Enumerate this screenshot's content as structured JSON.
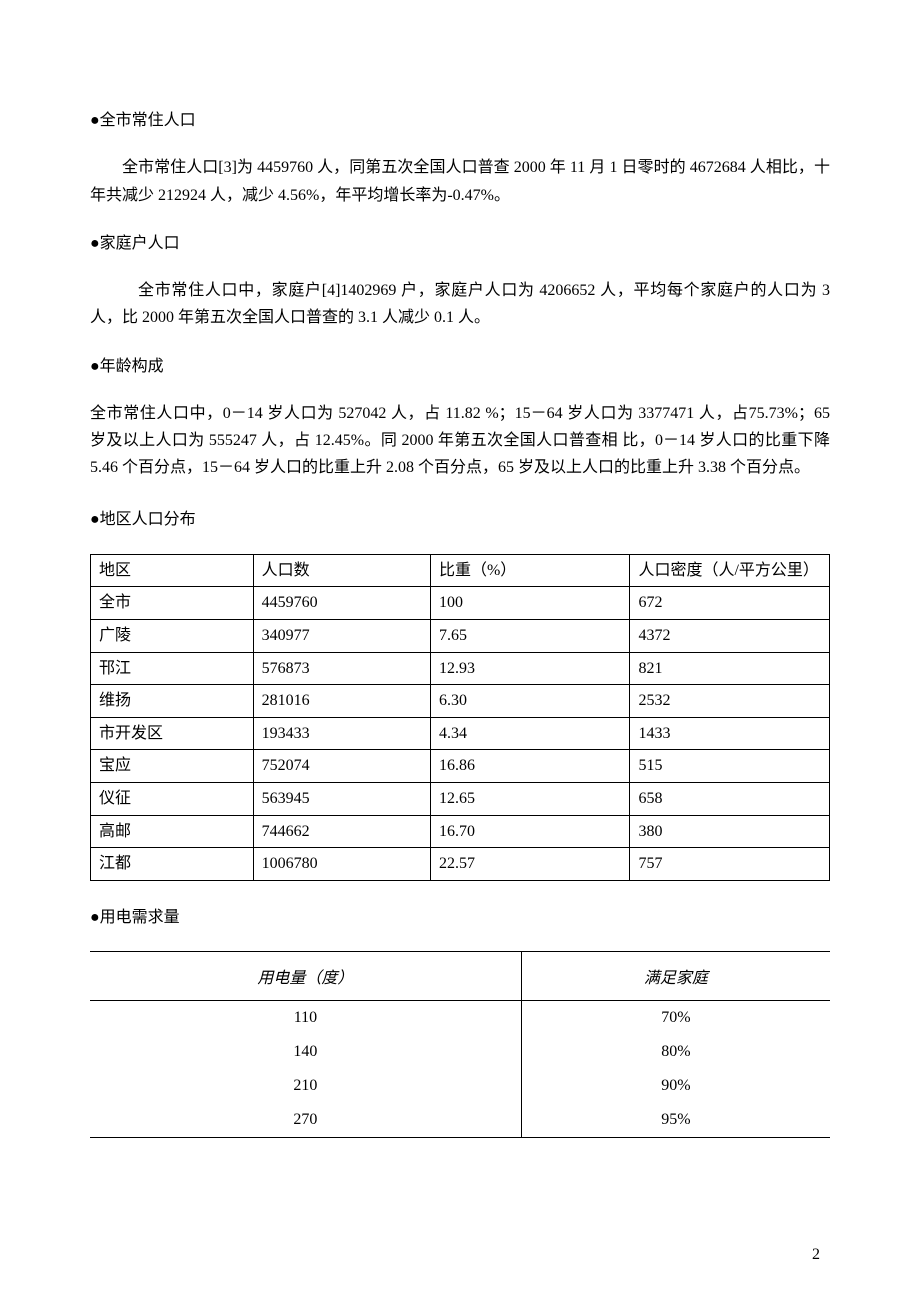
{
  "page_number": "2",
  "sections": {
    "s1": {
      "heading": "●全市常住人口",
      "para": "全市常住人口[3]为 4459760 人，同第五次全国人口普查 2000 年 11 月 1 日零时的 4672684 人相比，十年共减少 212924 人，减少 4.56%，年平均增长率为-0.47%。"
    },
    "s2": {
      "heading": "●家庭户人口",
      "para": "全市常住人口中，家庭户[4]1402969 户，家庭户人口为 4206652 人，平均每个家庭户的人口为 3 人，比 2000 年第五次全国人口普查的 3.1 人减少 0.1 人。"
    },
    "s3": {
      "heading": "●年龄构成",
      "para": "全市常住人口中，0－14 岁人口为 527042 人，占 11.82 %；15－64 岁人口为 3377471 人，占75.73%；65 岁及以上人口为 555247 人，占 12.45%。同 2000 年第五次全国人口普查相 比，0－14 岁人口的比重下降 5.46 个百分点，15－64 岁人口的比重上升 2.08 个百分点，65 岁及以上人口的比重上升 3.38 个百分点。"
    },
    "s4": {
      "heading": "●地区人口分布"
    },
    "s5": {
      "heading": "●用电需求量"
    }
  },
  "region_table": {
    "headers": [
      "地区",
      "人口数",
      "比重（%）",
      "人口密度（人/平方公里）"
    ],
    "rows": [
      [
        "全市",
        "4459760",
        "100",
        "672"
      ],
      [
        "广陵",
        "340977",
        "7.65",
        "4372"
      ],
      [
        "邗江",
        "576873",
        "12.93",
        "821"
      ],
      [
        "维扬",
        "281016",
        "6.30",
        "2532"
      ],
      [
        "市开发区",
        "193433",
        "4.34",
        "1433"
      ],
      [
        "宝应",
        "752074",
        "16.86",
        "515"
      ],
      [
        "仪征",
        "563945",
        "12.65",
        "658"
      ],
      [
        "高邮",
        "744662",
        "16.70",
        "380"
      ],
      [
        "江都",
        "1006780",
        "22.57",
        "757"
      ]
    ],
    "col_widths": [
      "22%",
      "24%",
      "27%",
      "27%"
    ]
  },
  "demand_table": {
    "headers": [
      "用电量（度）",
      "满足家庭"
    ],
    "rows": [
      [
        "110",
        "70%"
      ],
      [
        "140",
        "80%"
      ],
      [
        "210",
        "90%"
      ],
      [
        "270",
        "95%"
      ]
    ]
  },
  "colors": {
    "text": "#000000",
    "background": "#ffffff",
    "border": "#000000"
  },
  "typography": {
    "body_font": "SimSun",
    "body_size_pt": 12,
    "line_height": 1.7
  }
}
